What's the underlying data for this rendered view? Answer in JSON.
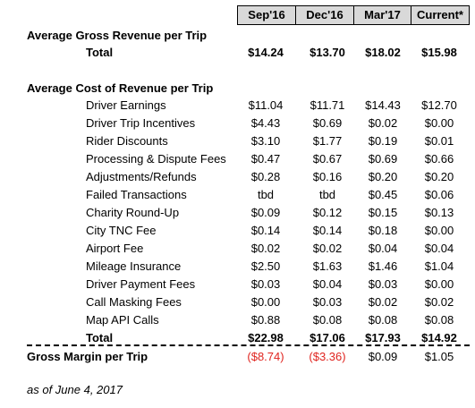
{
  "columns": [
    "Sep'16",
    "Dec'16",
    "Mar'17",
    "Current*"
  ],
  "avg_gross_revenue": {
    "title": "Average Gross Revenue per Trip",
    "total_label": "Total",
    "total_values": [
      "$14.24",
      "$13.70",
      "$18.02",
      "$15.98"
    ]
  },
  "avg_cost_revenue": {
    "title": "Average Cost of Revenue per Trip",
    "items": [
      {
        "label": "Driver Earnings",
        "values": [
          "$11.04",
          "$11.71",
          "$14.43",
          "$12.70"
        ]
      },
      {
        "label": "Driver Trip Incentives",
        "values": [
          "$4.43",
          "$0.69",
          "$0.02",
          "$0.00"
        ]
      },
      {
        "label": "Rider Discounts",
        "values": [
          "$3.10",
          "$1.77",
          "$0.19",
          "$0.01"
        ]
      },
      {
        "label": "Processing & Dispute Fees",
        "values": [
          "$0.47",
          "$0.67",
          "$0.69",
          "$0.66"
        ]
      },
      {
        "label": "Adjustments/Refunds",
        "values": [
          "$0.28",
          "$0.16",
          "$0.20",
          "$0.20"
        ]
      },
      {
        "label": "Failed Transactions",
        "values": [
          "tbd",
          "tbd",
          "$0.45",
          "$0.06"
        ]
      },
      {
        "label": "Charity Round-Up",
        "values": [
          "$0.09",
          "$0.12",
          "$0.15",
          "$0.13"
        ]
      },
      {
        "label": "City TNC Fee",
        "values": [
          "$0.14",
          "$0.14",
          "$0.18",
          "$0.00"
        ]
      },
      {
        "label": "Airport Fee",
        "values": [
          "$0.02",
          "$0.02",
          "$0.04",
          "$0.04"
        ]
      },
      {
        "label": "Mileage Insurance",
        "values": [
          "$2.50",
          "$1.63",
          "$1.46",
          "$1.04"
        ]
      },
      {
        "label": "Driver Payment Fees",
        "values": [
          "$0.03",
          "$0.04",
          "$0.03",
          "$0.00"
        ]
      },
      {
        "label": "Call Masking Fees",
        "values": [
          "$0.00",
          "$0.03",
          "$0.02",
          "$0.02"
        ]
      },
      {
        "label": "Map API Calls",
        "values": [
          "$0.88",
          "$0.08",
          "$0.08",
          "$0.08"
        ]
      }
    ],
    "total_label": "Total",
    "total_values": [
      "$22.98",
      "$17.06",
      "$17.93",
      "$14.92"
    ]
  },
  "gross_margin": {
    "label": "Gross Margin per Trip",
    "values": [
      "($8.74)",
      "($3.36)",
      "$0.09",
      "$1.05"
    ],
    "negative_color": "#e0241f"
  },
  "footnote": "as of June 4, 2017"
}
